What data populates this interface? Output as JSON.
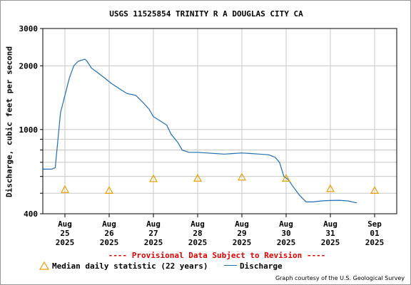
{
  "chart_data": {
    "type": "line",
    "title": "USGS 11525854 TRINITY R A DOUGLAS CITY CA",
    "ylabel": "Discharge, cubic feet per second",
    "yscale": "log",
    "ylim": [
      400,
      3000
    ],
    "yticks": [
      400,
      1000,
      2000,
      3000
    ],
    "ygrid": [
      400,
      500,
      600,
      700,
      800,
      900,
      1000,
      2000,
      3000
    ],
    "x_ticks": [
      {
        "day": 0,
        "label": [
          "Aug",
          "25",
          "2025"
        ]
      },
      {
        "day": 1,
        "label": [
          "Aug",
          "26",
          "2025"
        ]
      },
      {
        "day": 2,
        "label": [
          "Aug",
          "27",
          "2025"
        ]
      },
      {
        "day": 3,
        "label": [
          "Aug",
          "28",
          "2025"
        ]
      },
      {
        "day": 4,
        "label": [
          "Aug",
          "29",
          "2025"
        ]
      },
      {
        "day": 5,
        "label": [
          "Aug",
          "30",
          "2025"
        ]
      },
      {
        "day": 6,
        "label": [
          "Aug",
          "31",
          "2025"
        ]
      },
      {
        "day": 7,
        "label": [
          "Sep",
          "01",
          "2025"
        ]
      }
    ],
    "xlim": [
      -0.5,
      7.5
    ],
    "series": [
      {
        "name": "Discharge",
        "color": "#1f6fb4",
        "points": [
          [
            -0.5,
            650
          ],
          [
            -0.3,
            650
          ],
          [
            -0.22,
            660
          ],
          [
            -0.18,
            800
          ],
          [
            -0.1,
            1200
          ],
          [
            0.0,
            1450
          ],
          [
            0.1,
            1750
          ],
          [
            0.2,
            2000
          ],
          [
            0.3,
            2100
          ],
          [
            0.45,
            2150
          ],
          [
            0.5,
            2100
          ],
          [
            0.6,
            1950
          ],
          [
            0.75,
            1850
          ],
          [
            0.9,
            1750
          ],
          [
            1.05,
            1650
          ],
          [
            1.25,
            1550
          ],
          [
            1.4,
            1480
          ],
          [
            1.6,
            1450
          ],
          [
            1.75,
            1350
          ],
          [
            1.9,
            1250
          ],
          [
            2.0,
            1150
          ],
          [
            2.15,
            1100
          ],
          [
            2.3,
            1050
          ],
          [
            2.4,
            950
          ],
          [
            2.55,
            870
          ],
          [
            2.65,
            800
          ],
          [
            2.8,
            780
          ],
          [
            3.0,
            780
          ],
          [
            3.2,
            775
          ],
          [
            3.4,
            770
          ],
          [
            3.6,
            765
          ],
          [
            3.8,
            770
          ],
          [
            4.0,
            775
          ],
          [
            4.2,
            770
          ],
          [
            4.4,
            765
          ],
          [
            4.6,
            760
          ],
          [
            4.75,
            740
          ],
          [
            4.85,
            700
          ],
          [
            4.95,
            600
          ],
          [
            5.05,
            580
          ],
          [
            5.15,
            540
          ],
          [
            5.3,
            490
          ],
          [
            5.45,
            455
          ],
          [
            5.6,
            455
          ],
          [
            5.8,
            460
          ],
          [
            6.0,
            462
          ],
          [
            6.2,
            463
          ],
          [
            6.4,
            460
          ],
          [
            6.5,
            455
          ],
          [
            6.6,
            450
          ]
        ]
      }
    ],
    "median": {
      "name": "Median daily statistic (22 years)",
      "color": "#e8a000",
      "points": [
        [
          0,
          520
        ],
        [
          1,
          515
        ],
        [
          2,
          585
        ],
        [
          3,
          588
        ],
        [
          4,
          595
        ],
        [
          5,
          588
        ],
        [
          6,
          525
        ],
        [
          7,
          515
        ]
      ]
    },
    "grid": true,
    "legend": "bottom"
  },
  "provisional_note": "---- Provisional Data Subject to Revision ----",
  "legend_median_label": "Median daily statistic (22 years)",
  "legend_discharge_label": "Discharge",
  "credit": "Graph courtesy of the U.S. Geological Survey"
}
